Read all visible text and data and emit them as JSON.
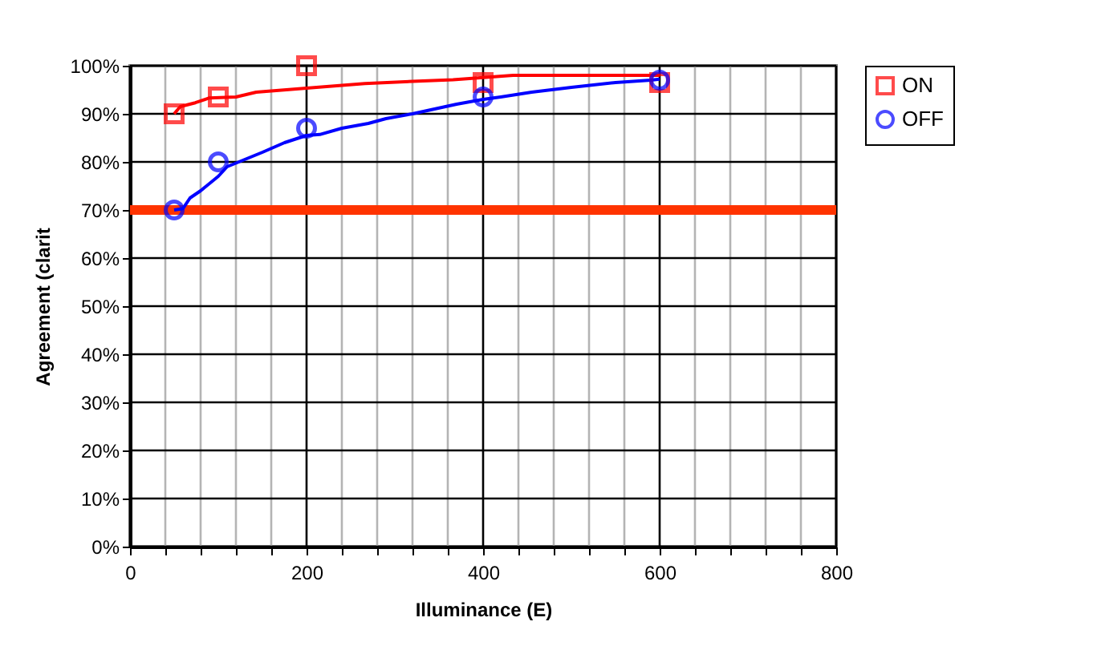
{
  "chart_data": {
    "type": "scatter",
    "xlabel": "Illuminance (E)",
    "ylabel": "Agreement (clarit",
    "xlim": [
      0,
      800
    ],
    "ylim": [
      0,
      100
    ],
    "xticks": [
      0,
      {
        "value": 40,
        "label": null
      },
      {
        "value": 80,
        "label": null
      },
      {
        "value": 120,
        "label": null
      },
      {
        "value": 160,
        "label": null
      },
      200,
      {
        "value": 240,
        "label": null
      },
      {
        "value": 280,
        "label": null
      },
      {
        "value": 320,
        "label": null
      },
      {
        "value": 360,
        "label": null
      },
      400,
      {
        "value": 440,
        "label": null
      },
      {
        "value": 480,
        "label": null
      },
      {
        "value": 520,
        "label": null
      },
      {
        "value": 560,
        "label": null
      },
      600,
      {
        "value": 640,
        "label": null
      },
      {
        "value": 680,
        "label": null
      },
      {
        "value": 720,
        "label": null
      },
      {
        "value": 760,
        "label": null
      },
      800
    ],
    "yticks": [
      {
        "value": 0,
        "label": "0%"
      },
      {
        "value": 10,
        "label": "10%"
      },
      {
        "value": 20,
        "label": "20%"
      },
      {
        "value": 30,
        "label": "30%"
      },
      {
        "value": 40,
        "label": "40%"
      },
      {
        "value": 50,
        "label": "50%"
      },
      {
        "value": 60,
        "label": "60%"
      },
      {
        "value": 70,
        "label": "70%"
      },
      {
        "value": 80,
        "label": "80%"
      },
      {
        "value": 90,
        "label": "90%"
      },
      {
        "value": 100,
        "label": "100%"
      }
    ],
    "grid": true,
    "legend": "right",
    "ref_lines": [
      {
        "axis": "y",
        "value": 70,
        "color": "#ff3300"
      }
    ],
    "series": [
      {
        "type": "line",
        "color": "#ff0000",
        "marker": "none",
        "x": [
          50,
          57,
          74,
          90,
          120,
          143,
          197,
          266,
          366,
          434,
          600
        ],
        "values": [
          90,
          91.5,
          92.3,
          93.3,
          93.5,
          94.5,
          95.3,
          96.3,
          97.1,
          98,
          98
        ]
      },
      {
        "type": "line",
        "color": "#0000ff",
        "marker": "none",
        "x": [
          50,
          60,
          68,
          80,
          100,
          110,
          130,
          150,
          175,
          200,
          215,
          240,
          270,
          290,
          320,
          345,
          370,
          400,
          420,
          455,
          500,
          550,
          590,
          600
        ],
        "values": [
          70,
          70.3,
          72.5,
          74,
          77,
          79,
          80.5,
          82,
          84,
          85.5,
          85.7,
          87,
          88,
          89,
          90,
          91,
          92,
          93,
          93.5,
          94.5,
          95.5,
          96.5,
          97,
          97.2
        ]
      },
      {
        "type": "scatter",
        "name": "ON",
        "color": "#ff0000",
        "marker": "square",
        "x": [
          50,
          100,
          200,
          400,
          600
        ],
        "values": [
          90,
          93.5,
          100,
          96.5,
          96.5
        ]
      },
      {
        "type": "scatter",
        "name": "OFF",
        "color": "#0000ff",
        "marker": "circle",
        "x": [
          50,
          100,
          200,
          400,
          600
        ],
        "values": [
          70,
          80,
          87,
          93.5,
          97
        ]
      }
    ]
  }
}
